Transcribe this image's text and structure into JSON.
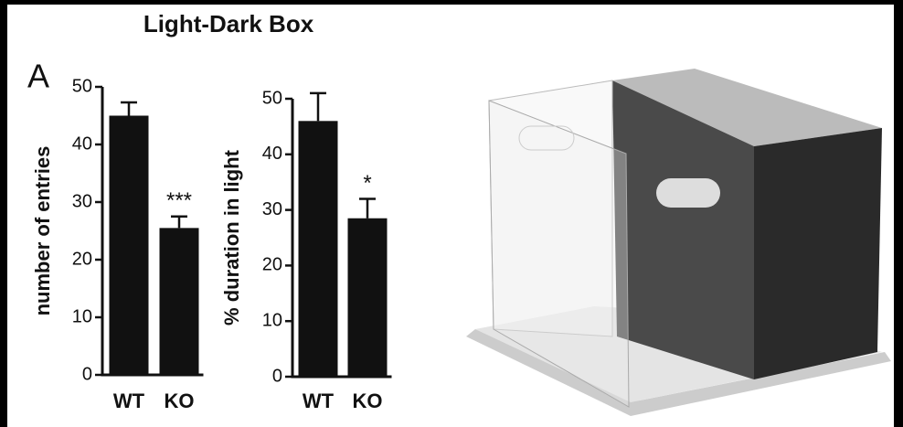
{
  "title": "Light-Dark Box",
  "panel_label": "A",
  "chart_data": [
    {
      "type": "bar",
      "y_label": "number of entries",
      "categories": [
        "WT",
        "KO"
      ],
      "values": [
        45,
        25.5
      ],
      "errors": [
        2.3,
        2
      ],
      "color": "#111111",
      "ylim": [
        0,
        50
      ],
      "yticks": [
        0,
        10,
        20,
        30,
        40,
        50
      ],
      "annotations": [
        {
          "category": "KO",
          "text": "***"
        }
      ]
    },
    {
      "type": "bar",
      "y_label": "% duration in light",
      "categories": [
        "WT",
        "KO"
      ],
      "values": [
        46,
        28.5
      ],
      "errors": [
        5,
        3.5
      ],
      "color": "#111111",
      "ylim": [
        0,
        50
      ],
      "yticks": [
        0,
        10,
        20,
        30,
        40,
        50
      ],
      "annotations": [
        {
          "category": "KO",
          "text": "*"
        }
      ]
    }
  ]
}
